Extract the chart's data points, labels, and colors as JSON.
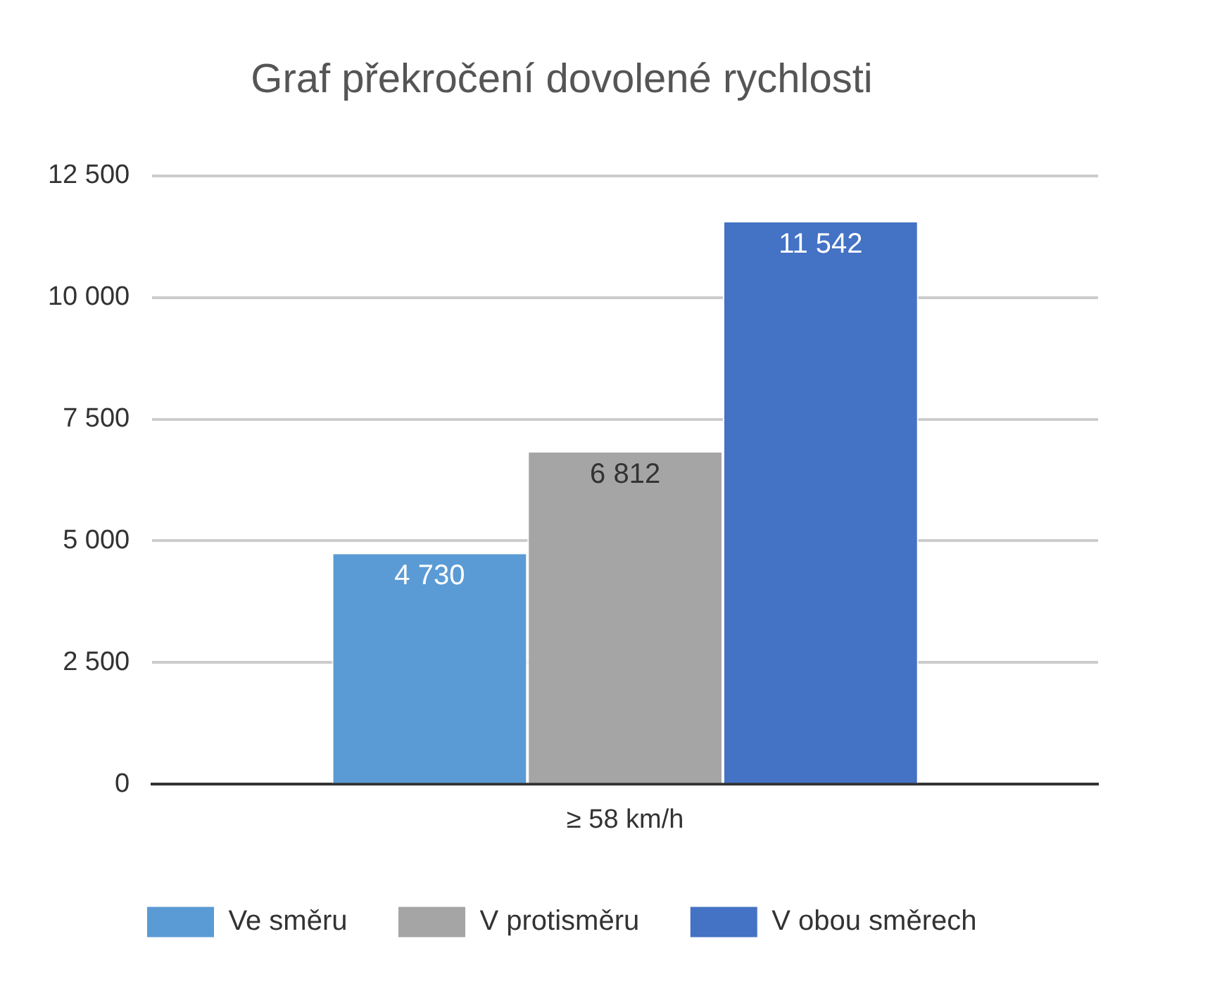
{
  "chart_data": {
    "type": "bar",
    "title": "Graf překročení dovolené rychlosti",
    "categories": [
      "≥ 58 km/h"
    ],
    "series": [
      {
        "name": "Ve směru",
        "color": "#5b9bd5",
        "values": [
          4730
        ],
        "value_labels": [
          "4 730"
        ]
      },
      {
        "name": "V protisměru",
        "color": "#a5a5a5",
        "values": [
          6812
        ],
        "value_labels": [
          "6 812"
        ]
      },
      {
        "name": "V obou směrech",
        "color": "#4472c4",
        "values": [
          11542
        ],
        "value_labels": [
          "11 542"
        ]
      }
    ],
    "ylim": [
      0,
      12500
    ],
    "yticks": [
      {
        "value": 0,
        "label": "0"
      },
      {
        "value": 2500,
        "label": "2 500"
      },
      {
        "value": 5000,
        "label": "5 000"
      },
      {
        "value": 7500,
        "label": "7 500"
      },
      {
        "value": 10000,
        "label": "10 000"
      },
      {
        "value": 12500,
        "label": "12 500"
      }
    ],
    "grid": "y",
    "legend": "bottom"
  }
}
